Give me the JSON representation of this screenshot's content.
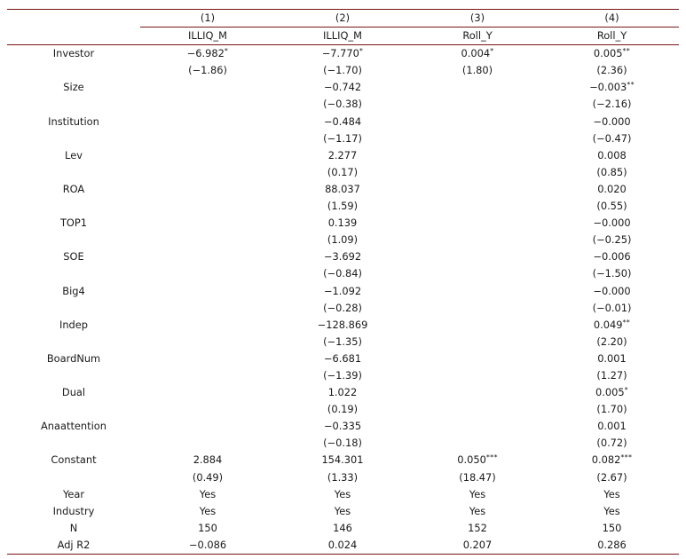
{
  "header": {
    "numbers": [
      "(1)",
      "(2)",
      "(3)",
      "(4)"
    ],
    "depvars": [
      "ILLIQ_M",
      "ILLIQ_M",
      "Roll_Y",
      "Roll_Y"
    ]
  },
  "rows": [
    {
      "label": "Investor",
      "coef": [
        {
          "v": "−6.982",
          "s": "*"
        },
        {
          "v": "−7.770",
          "s": "*"
        },
        {
          "v": "0.004",
          "s": "*"
        },
        {
          "v": "0.005",
          "s": "**"
        }
      ],
      "t": [
        "(−1.86)",
        "(−1.70)",
        "(1.80)",
        "(2.36)"
      ]
    },
    {
      "label": "Size",
      "coef": [
        {
          "v": "",
          "s": ""
        },
        {
          "v": "−0.742",
          "s": ""
        },
        {
          "v": "",
          "s": ""
        },
        {
          "v": "−0.003",
          "s": "**"
        }
      ],
      "t": [
        "",
        "(−0.38)",
        "",
        "(−2.16)"
      ]
    },
    {
      "label": "Institution",
      "coef": [
        {
          "v": "",
          "s": ""
        },
        {
          "v": "−0.484",
          "s": ""
        },
        {
          "v": "",
          "s": ""
        },
        {
          "v": "−0.000",
          "s": ""
        }
      ],
      "t": [
        "",
        "(−1.17)",
        "",
        "(−0.47)"
      ]
    },
    {
      "label": "Lev",
      "coef": [
        {
          "v": "",
          "s": ""
        },
        {
          "v": "2.277",
          "s": ""
        },
        {
          "v": "",
          "s": ""
        },
        {
          "v": "0.008",
          "s": ""
        }
      ],
      "t": [
        "",
        "(0.17)",
        "",
        "(0.85)"
      ]
    },
    {
      "label": "ROA",
      "coef": [
        {
          "v": "",
          "s": ""
        },
        {
          "v": "88.037",
          "s": ""
        },
        {
          "v": "",
          "s": ""
        },
        {
          "v": "0.020",
          "s": ""
        }
      ],
      "t": [
        "",
        "(1.59)",
        "",
        "(0.55)"
      ]
    },
    {
      "label": "TOP1",
      "coef": [
        {
          "v": "",
          "s": ""
        },
        {
          "v": "0.139",
          "s": ""
        },
        {
          "v": "",
          "s": ""
        },
        {
          "v": "−0.000",
          "s": ""
        }
      ],
      "t": [
        "",
        "(1.09)",
        "",
        "(−0.25)"
      ]
    },
    {
      "label": "SOE",
      "coef": [
        {
          "v": "",
          "s": ""
        },
        {
          "v": "−3.692",
          "s": ""
        },
        {
          "v": "",
          "s": ""
        },
        {
          "v": "−0.006",
          "s": ""
        }
      ],
      "t": [
        "",
        "(−0.84)",
        "",
        "(−1.50)"
      ]
    },
    {
      "label": "Big4",
      "coef": [
        {
          "v": "",
          "s": ""
        },
        {
          "v": "−1.092",
          "s": ""
        },
        {
          "v": "",
          "s": ""
        },
        {
          "v": "−0.000",
          "s": ""
        }
      ],
      "t": [
        "",
        "(−0.28)",
        "",
        "(−0.01)"
      ]
    },
    {
      "label": "Indep",
      "coef": [
        {
          "v": "",
          "s": ""
        },
        {
          "v": "−128.869",
          "s": ""
        },
        {
          "v": "",
          "s": ""
        },
        {
          "v": "0.049",
          "s": "**"
        }
      ],
      "t": [
        "",
        "(−1.35)",
        "",
        "(2.20)"
      ]
    },
    {
      "label": "BoardNum",
      "coef": [
        {
          "v": "",
          "s": ""
        },
        {
          "v": "−6.681",
          "s": ""
        },
        {
          "v": "",
          "s": ""
        },
        {
          "v": "0.001",
          "s": ""
        }
      ],
      "t": [
        "",
        "(−1.39)",
        "",
        "(1.27)"
      ]
    },
    {
      "label": "Dual",
      "coef": [
        {
          "v": "",
          "s": ""
        },
        {
          "v": "1.022",
          "s": ""
        },
        {
          "v": "",
          "s": ""
        },
        {
          "v": "0.005",
          "s": "*"
        }
      ],
      "t": [
        "",
        "(0.19)",
        "",
        "(1.70)"
      ]
    },
    {
      "label": "Anaattention",
      "coef": [
        {
          "v": "",
          "s": ""
        },
        {
          "v": "−0.335",
          "s": ""
        },
        {
          "v": "",
          "s": ""
        },
        {
          "v": "0.001",
          "s": ""
        }
      ],
      "t": [
        "",
        "(−0.18)",
        "",
        "(0.72)"
      ]
    },
    {
      "label": "Constant",
      "coef": [
        {
          "v": "2.884",
          "s": ""
        },
        {
          "v": "154.301",
          "s": ""
        },
        {
          "v": "0.050",
          "s": "***"
        },
        {
          "v": "0.082",
          "s": "***"
        }
      ],
      "t": [
        "(0.49)",
        "(1.33)",
        "(18.47)",
        "(2.67)"
      ]
    }
  ],
  "footer": [
    {
      "label": "Year",
      "values": [
        "Yes",
        "Yes",
        "Yes",
        "Yes"
      ]
    },
    {
      "label": "Industry",
      "values": [
        "Yes",
        "Yes",
        "Yes",
        "Yes"
      ]
    },
    {
      "label": "N",
      "values": [
        "150",
        "146",
        "152",
        "150"
      ]
    },
    {
      "label": "Adj R2",
      "values": [
        "−0.086",
        "0.024",
        "0.207",
        "0.286"
      ]
    }
  ]
}
